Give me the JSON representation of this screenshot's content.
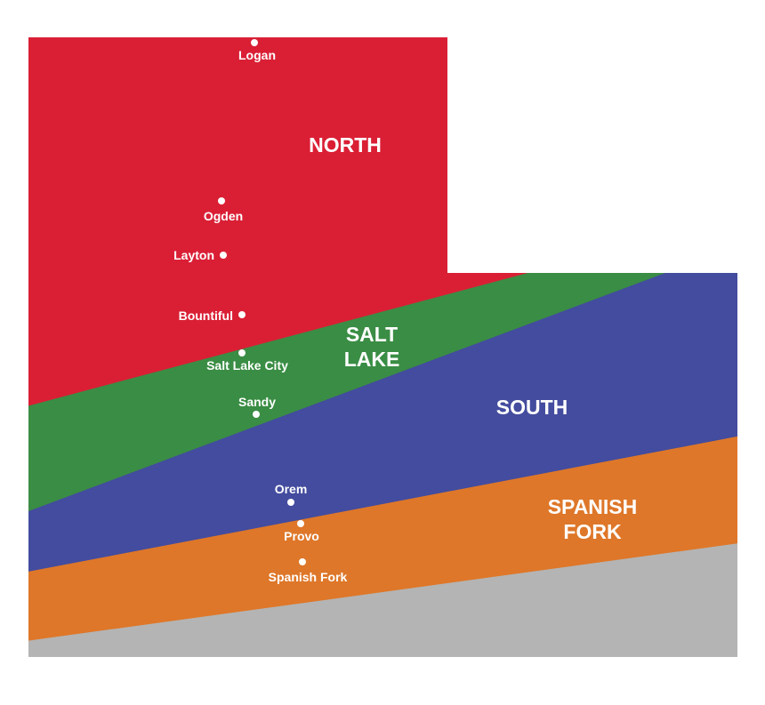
{
  "colors": {
    "north": "#da1f35",
    "salt_lake": "#3a8d44",
    "south": "#434c9e",
    "spanish_fork": "#de7729",
    "outside": "#b4b4b4",
    "text": "#ffffff"
  },
  "regions": {
    "north": "NORTH",
    "salt_lake_line1": "SALT",
    "salt_lake_line2": "LAKE",
    "south": "SOUTH",
    "spanish_fork_line1": "SPANISH",
    "spanish_fork_line2": "FORK"
  },
  "cities": {
    "logan": "Logan",
    "ogden": "Ogden",
    "layton": "Layton",
    "bountiful": "Bountiful",
    "salt_lake_city": "Salt Lake City",
    "sandy": "Sandy",
    "orem": "Orem",
    "provo": "Provo",
    "spanish_fork": "Spanish Fork"
  }
}
